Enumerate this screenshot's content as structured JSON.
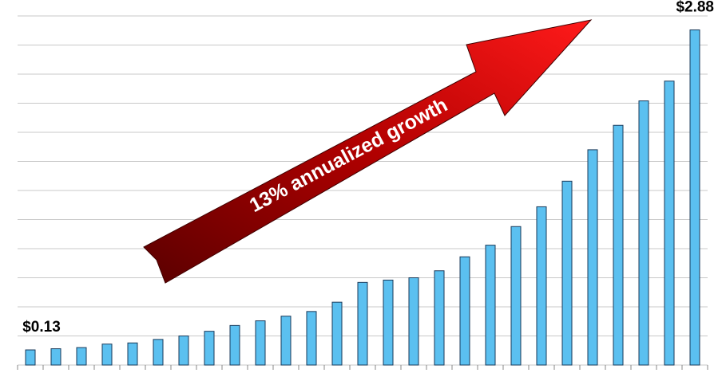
{
  "chart_data": {
    "type": "bar",
    "annotation": "13% annualized growth",
    "categories": [
      null,
      null,
      null,
      null,
      null,
      null,
      null,
      null,
      null,
      null,
      null,
      null,
      null,
      null,
      null,
      null,
      null,
      null,
      null,
      null,
      null,
      null,
      null,
      null,
      null,
      null,
      null
    ],
    "values": [
      0.13,
      0.14,
      0.15,
      0.18,
      0.19,
      0.22,
      0.25,
      0.29,
      0.34,
      0.38,
      0.42,
      0.46,
      0.54,
      0.71,
      0.73,
      0.75,
      0.81,
      0.93,
      1.03,
      1.19,
      1.36,
      1.58,
      1.85,
      2.06,
      2.27,
      2.44,
      2.88
    ],
    "value_labels": [
      "$0.13",
      null,
      null,
      null,
      null,
      null,
      null,
      null,
      null,
      null,
      null,
      null,
      null,
      null,
      null,
      null,
      null,
      null,
      null,
      null,
      null,
      null,
      null,
      null,
      null,
      null,
      "$2.88"
    ],
    "color": "#5bc0f0",
    "ylim": [
      0,
      3
    ],
    "yticks": [
      0,
      0.25,
      0.5,
      0.75,
      1,
      1.25,
      1.5,
      1.75,
      2,
      2.25,
      2.5,
      2.75,
      3
    ],
    "grid": true
  }
}
